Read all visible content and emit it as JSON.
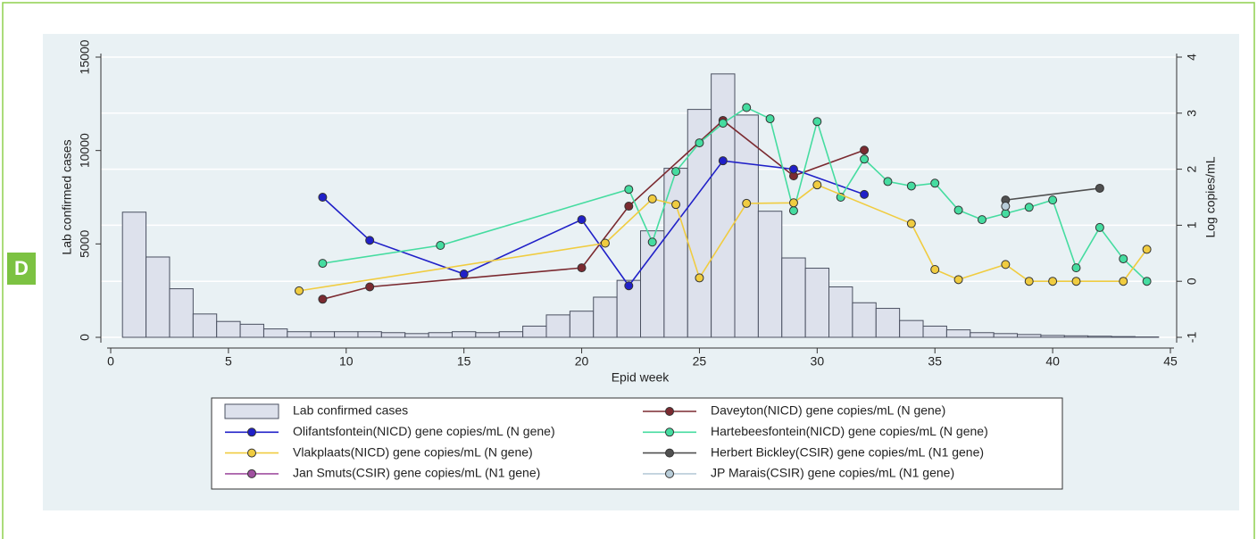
{
  "panel_label": "D",
  "chart_data": {
    "type": "combo",
    "x_label": "Epid week",
    "y_label": "Lab confirmed cases",
    "y2_label": "Log copies/mL",
    "xlim": [
      0,
      45
    ],
    "xticks": [
      0,
      5,
      10,
      15,
      20,
      25,
      30,
      35,
      40,
      45
    ],
    "ylim": [
      0,
      15000
    ],
    "yticks": [
      0,
      5000,
      10000,
      15000
    ],
    "y2lim": [
      -1,
      4
    ],
    "y2ticks": [
      -1,
      0,
      1,
      2,
      3,
      4
    ],
    "grid": true,
    "legend": "bottom",
    "series": [
      {
        "name": "Lab confirmed cases",
        "type": "bar",
        "color": "#dde1ec",
        "x": [
          1,
          2,
          3,
          4,
          5,
          6,
          7,
          8,
          9,
          10,
          11,
          12,
          13,
          14,
          15,
          16,
          17,
          18,
          19,
          20,
          21,
          22,
          23,
          24,
          25,
          26,
          27,
          28,
          29,
          30,
          31,
          32,
          33,
          34,
          35,
          36,
          37,
          38,
          39,
          40,
          41,
          42,
          43,
          44
        ],
        "values": [
          6700,
          4300,
          2600,
          1250,
          850,
          700,
          450,
          300,
          300,
          300,
          300,
          250,
          200,
          250,
          300,
          250,
          300,
          600,
          1200,
          1400,
          2150,
          3050,
          5700,
          9050,
          12200,
          14100,
          11900,
          6750,
          4250,
          3700,
          2700,
          1850,
          1550,
          900,
          600,
          400,
          250,
          200,
          150,
          100,
          80,
          60,
          40,
          20
        ]
      },
      {
        "name": "Daveyton(NICD) gene copies/mL (N gene)",
        "type": "line",
        "axis": "y2",
        "color": "#7b2a30",
        "x": [
          9,
          11,
          20,
          22,
          26,
          29,
          32
        ],
        "values": [
          -0.32,
          -0.1,
          0.24,
          1.34,
          2.87,
          1.88,
          2.34
        ]
      },
      {
        "name": "Olifantsfontein(NICD) gene copies/mL (N gene)",
        "type": "line",
        "axis": "y2",
        "color": "#2020c8",
        "x": [
          9,
          11,
          15,
          20,
          22,
          26,
          29,
          32
        ],
        "values": [
          1.5,
          0.73,
          0.13,
          1.1,
          -0.08,
          2.15,
          2.0,
          1.55
        ]
      },
      {
        "name": "Hartebeesfontein(NICD) gene copies/mL (N gene)",
        "type": "line",
        "axis": "y2",
        "color": "#45dca0",
        "x": [
          9,
          14,
          22,
          23,
          24,
          25,
          26,
          27,
          28,
          29,
          30,
          31,
          32,
          33,
          34,
          35,
          36,
          37,
          38,
          39,
          40,
          41,
          42,
          43,
          44
        ],
        "values": [
          0.32,
          0.64,
          1.64,
          0.7,
          1.96,
          2.47,
          2.82,
          3.1,
          2.9,
          1.26,
          2.85,
          1.5,
          2.18,
          1.78,
          1.7,
          1.75,
          1.27,
          1.1,
          1.21,
          1.32,
          1.45,
          0.24,
          0.96,
          0.4,
          0
        ]
      },
      {
        "name": "Vlakplaats(NICD) gene copies/mL (N gene)",
        "type": "line",
        "axis": "y2",
        "color": "#f0cc40",
        "x": [
          8,
          21,
          23,
          24,
          25,
          27,
          29,
          30,
          34,
          35,
          36,
          38,
          39,
          40,
          41,
          43,
          44
        ],
        "values": [
          -0.17,
          0.68,
          1.47,
          1.37,
          0.06,
          1.39,
          1.4,
          1.72,
          1.03,
          0.21,
          0.03,
          0.3,
          0,
          0,
          0,
          0,
          0.57
        ]
      },
      {
        "name": "Herbert Bickley(CSIR) gene copies/mL (N1 gene)",
        "type": "line",
        "axis": "y2",
        "color": "#505050",
        "x": [
          38,
          42
        ],
        "values": [
          1.45,
          1.66
        ]
      },
      {
        "name": "Jan Smuts(CSIR) gene copies/mL (N1 gene)",
        "type": "line",
        "axis": "y2",
        "color": "#a050a0",
        "x": [],
        "values": []
      },
      {
        "name": "JP Marais(CSIR) gene copies/mL (N1 gene)",
        "type": "line",
        "axis": "y2",
        "color": "#b8ccd8",
        "x": [
          38
        ],
        "values": [
          1.34
        ]
      }
    ]
  }
}
